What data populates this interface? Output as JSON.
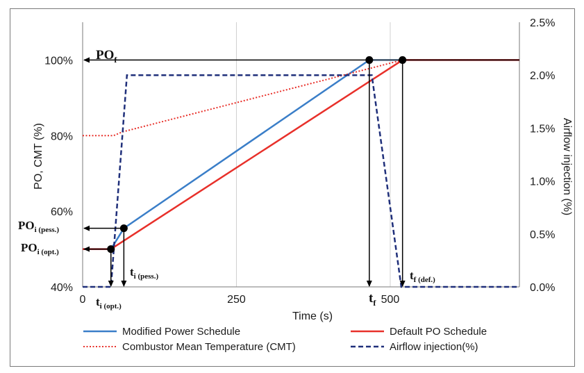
{
  "chart_data": {
    "type": "line",
    "xlabel": "Time (s)",
    "ylabel_left": "PO, CMT (%)",
    "ylabel_right": "Airflow injection (%)",
    "xlim": [
      0,
      710
    ],
    "ylim_left": [
      40,
      110
    ],
    "ylim_right": [
      0,
      2.5
    ],
    "x_ticks": [
      0,
      250,
      500
    ],
    "x_tick_labels": [
      "0",
      "250",
      "500"
    ],
    "y_left_ticks": [
      40,
      60,
      80,
      100
    ],
    "y_left_tick_labels": [
      "40%",
      "60%",
      "80%",
      "100%"
    ],
    "y_right_ticks": [
      0,
      0.5,
      1.0,
      1.5,
      2.0,
      2.5
    ],
    "y_right_tick_labels": [
      "0.0%",
      "0.5%",
      "1.0%",
      "1.5%",
      "2.0%",
      "2.5%"
    ],
    "grid_x": true,
    "legend_position": "bottom",
    "series": [
      {
        "name": "Modified Power Schedule",
        "axis": "left",
        "color": "#3a7ec8",
        "style": "solid",
        "x": [
          0,
          46,
          67,
          466,
          520,
          710
        ],
        "y": [
          50,
          50,
          55.5,
          100,
          100,
          100
        ]
      },
      {
        "name": "Default PO Schedule",
        "axis": "left",
        "color": "#e8302a",
        "style": "solid",
        "x": [
          0,
          46,
          520,
          710
        ],
        "y": [
          50,
          50,
          100,
          100
        ]
      },
      {
        "name": "Combustor Mean Temperature (CMT)",
        "axis": "left",
        "color": "#e8302a",
        "style": "dotted",
        "x": [
          0,
          50,
          65,
          520,
          710
        ],
        "y": [
          80,
          80,
          81,
          100,
          100
        ]
      },
      {
        "name": "Airflow injection(%)",
        "axis": "right",
        "color": "#1f2f7a",
        "style": "dashed",
        "x": [
          0,
          46,
          72,
          470,
          518,
          710
        ],
        "y": [
          0,
          0,
          2.0,
          2.0,
          0,
          0
        ]
      }
    ],
    "points": [
      {
        "x": 46,
        "y": 50,
        "axis": "left"
      },
      {
        "x": 67,
        "y": 55.5,
        "axis": "left"
      },
      {
        "x": 466,
        "y": 100,
        "axis": "left"
      },
      {
        "x": 520,
        "y": 100,
        "axis": "left"
      }
    ],
    "annotations": {
      "po_f": {
        "main": "PO",
        "sub": "f"
      },
      "po_i_pess": {
        "main": "PO",
        "sub": "i (pess.)"
      },
      "po_i_opt": {
        "main": "PO",
        "sub": "i (opt.)"
      },
      "t_i_opt": {
        "main": "t",
        "sub": "i (opt.)"
      },
      "t_i_pess": {
        "main": "t",
        "sub": "i (pess.)"
      },
      "t_f": {
        "main": "t",
        "sub": "f"
      },
      "t_f_def": {
        "main": "t",
        "sub": "f (def.)"
      }
    }
  }
}
